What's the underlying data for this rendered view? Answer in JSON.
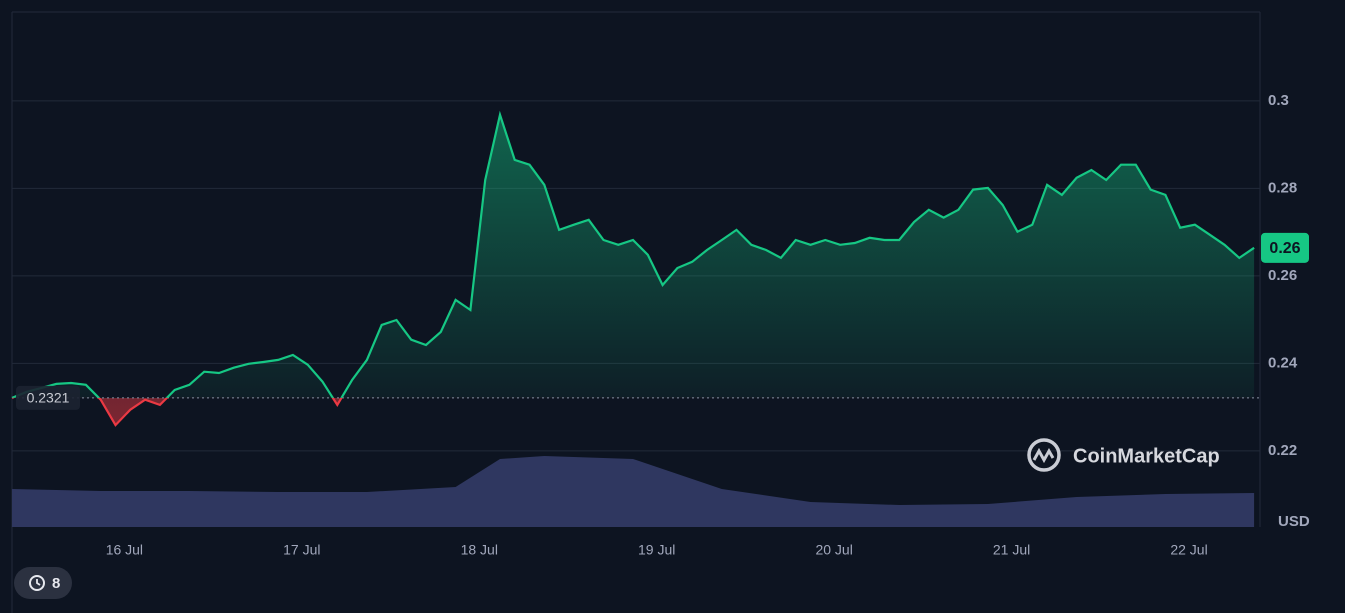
{
  "chart_data": {
    "type": "line",
    "series": [
      {
        "color": "#16c784",
        "below_color": "#ea3943",
        "values": [
          0.2321,
          0.2335,
          0.2344,
          0.2353,
          0.2355,
          0.2351,
          0.2317,
          0.2259,
          0.2294,
          0.2317,
          0.2305,
          0.2339,
          0.2351,
          0.2381,
          0.2378,
          0.239,
          0.2399,
          0.2403,
          0.2408,
          0.2419,
          0.2397,
          0.2358,
          0.2305,
          0.2362,
          0.2408,
          0.2488,
          0.2499,
          0.2454,
          0.2442,
          0.2472,
          0.2545,
          0.2522,
          0.2819,
          0.2968,
          0.2865,
          0.2854,
          0.2808,
          0.2705,
          0.2717,
          0.2728,
          0.2682,
          0.2671,
          0.2682,
          0.2648,
          0.2579,
          0.2618,
          0.2632,
          0.2659,
          0.2682,
          0.2705,
          0.2671,
          0.2659,
          0.2641,
          0.2682,
          0.2671,
          0.2682,
          0.2671,
          0.2675,
          0.2687,
          0.2682,
          0.2682,
          0.2723,
          0.2751,
          0.2733,
          0.2751,
          0.2797,
          0.2801,
          0.2762,
          0.2701,
          0.2717,
          0.2808,
          0.2785,
          0.2824,
          0.2842,
          0.2819,
          0.2854,
          0.2854,
          0.2797,
          0.2785,
          0.271,
          0.2717,
          0.2694,
          0.2671,
          0.2641,
          0.2664
        ],
        "last_value_label": "0.26"
      }
    ],
    "baseline": {
      "value": 0.2321,
      "label": "0.2321"
    },
    "volume": {
      "color": "#2f3760",
      "x": [
        0,
        6,
        12,
        18,
        24,
        30,
        33,
        36,
        42,
        48,
        54,
        60,
        66,
        72,
        78,
        84
      ],
      "values": [
        38,
        36,
        36,
        35,
        35,
        40,
        68,
        71,
        68,
        38,
        25,
        22,
        23,
        30,
        33,
        34
      ],
      "vlim": [
        0,
        100
      ]
    },
    "xlim": [
      0,
      84.4
    ],
    "xticks": [
      {
        "value": 7.6,
        "label": "16 Jul"
      },
      {
        "value": 19.6,
        "label": "17 Jul"
      },
      {
        "value": 31.6,
        "label": "18 Jul"
      },
      {
        "value": 43.6,
        "label": "19 Jul"
      },
      {
        "value": 55.6,
        "label": "20 Jul"
      },
      {
        "value": 67.6,
        "label": "21 Jul"
      },
      {
        "value": 79.6,
        "label": "22 Jul"
      }
    ],
    "ylim": [
      0.2026,
      0.3203
    ],
    "yticks": [
      0.22,
      0.24,
      0.26,
      0.28,
      0.3
    ],
    "y_unit": "USD",
    "grid": true,
    "watermark": "CoinMarketCap",
    "history_count": "8"
  }
}
